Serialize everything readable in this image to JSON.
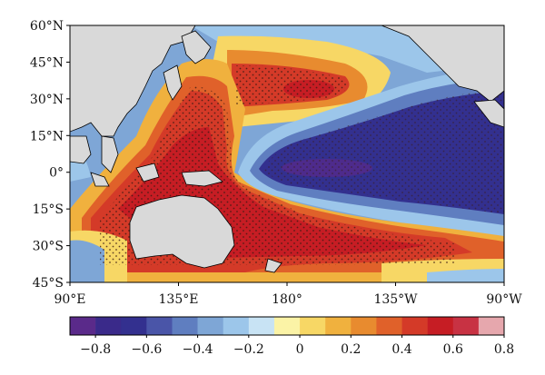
{
  "map": {
    "lat_labels": [
      "60°N",
      "45°N",
      "30°N",
      "15°N",
      "0°",
      "15°S",
      "30°S",
      "45°S"
    ],
    "lon_labels": [
      "90°E",
      "135°E",
      "180°",
      "135°W",
      "90°W"
    ],
    "colorbar": {
      "colors": [
        "#5a2a8a",
        "#3a2a8a",
        "#33308f",
        "#4a55a8",
        "#5f7ec0",
        "#7ea6d6",
        "#9cc6ea",
        "#c8e3f4",
        "#fbf3a6",
        "#f7d765",
        "#f0b13e",
        "#e88b2f",
        "#e0612a",
        "#d43a28",
        "#c61d24",
        "#c83243",
        "#e6a7ad"
      ],
      "tick_labels": [
        "−0.8",
        "−0.6",
        "−0.4",
        "−0.2",
        "0",
        "0.2",
        "0.4",
        "0.6",
        "0.8"
      ]
    }
  }
}
